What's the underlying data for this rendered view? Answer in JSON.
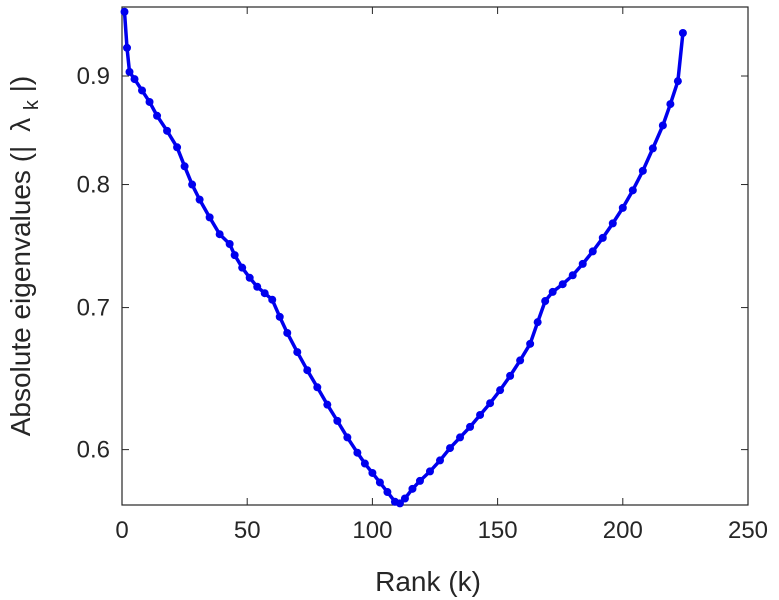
{
  "chart_data": {
    "type": "line",
    "title": "",
    "xlabel": "Rank (k)",
    "ylabel_prefix": "Absolute eigenvalues (|",
    "ylabel_symbol": "λ",
    "ylabel_subscript": "k",
    "ylabel_suffix": "|)",
    "y_scale": "log",
    "xlim": [
      0,
      250
    ],
    "ylim": [
      0.565,
      0.97
    ],
    "x_ticks": [
      0,
      50,
      100,
      150,
      200,
      250
    ],
    "x_tick_labels": [
      "0",
      "50",
      "100",
      "150",
      "200",
      "250"
    ],
    "y_ticks": [
      0.6,
      0.7,
      0.8,
      0.9
    ],
    "y_tick_labels": [
      "0.6",
      "0.7",
      "0.8",
      "0.9"
    ],
    "grid": false,
    "legend": "none",
    "series_color": "#0000ee",
    "series": [
      {
        "points": [
          [
            1,
            0.965
          ],
          [
            2,
            0.928
          ],
          [
            3,
            0.904
          ],
          [
            5,
            0.897
          ],
          [
            8,
            0.886
          ],
          [
            11,
            0.875
          ],
          [
            14,
            0.862
          ],
          [
            18,
            0.848
          ],
          [
            22,
            0.833
          ],
          [
            25,
            0.816
          ],
          [
            28,
            0.8
          ],
          [
            31,
            0.787
          ],
          [
            35,
            0.772
          ],
          [
            39,
            0.758
          ],
          [
            43,
            0.75
          ],
          [
            45,
            0.741
          ],
          [
            48,
            0.731
          ],
          [
            51,
            0.723
          ],
          [
            54,
            0.716
          ],
          [
            57,
            0.711
          ],
          [
            60,
            0.706
          ],
          [
            63,
            0.693
          ],
          [
            66,
            0.681
          ],
          [
            70,
            0.667
          ],
          [
            74,
            0.654
          ],
          [
            78,
            0.642
          ],
          [
            82,
            0.63
          ],
          [
            86,
            0.619
          ],
          [
            90,
            0.608
          ],
          [
            94,
            0.598
          ],
          [
            97,
            0.591
          ],
          [
            100,
            0.585
          ],
          [
            103,
            0.579
          ],
          [
            106,
            0.573
          ],
          [
            109,
            0.567
          ],
          [
            111,
            0.566
          ],
          [
            113,
            0.569
          ],
          [
            116,
            0.575
          ],
          [
            119,
            0.58
          ],
          [
            123,
            0.586
          ],
          [
            127,
            0.593
          ],
          [
            131,
            0.601
          ],
          [
            135,
            0.608
          ],
          [
            139,
            0.615
          ],
          [
            143,
            0.623
          ],
          [
            147,
            0.631
          ],
          [
            151,
            0.64
          ],
          [
            155,
            0.65
          ],
          [
            159,
            0.661
          ],
          [
            163,
            0.673
          ],
          [
            166,
            0.689
          ],
          [
            169,
            0.705
          ],
          [
            172,
            0.712
          ],
          [
            176,
            0.718
          ],
          [
            180,
            0.725
          ],
          [
            184,
            0.734
          ],
          [
            188,
            0.744
          ],
          [
            192,
            0.755
          ],
          [
            196,
            0.767
          ],
          [
            200,
            0.78
          ],
          [
            204,
            0.795
          ],
          [
            208,
            0.812
          ],
          [
            212,
            0.832
          ],
          [
            216,
            0.853
          ],
          [
            219,
            0.873
          ],
          [
            222,
            0.895
          ],
          [
            224,
            0.943
          ]
        ]
      }
    ]
  }
}
